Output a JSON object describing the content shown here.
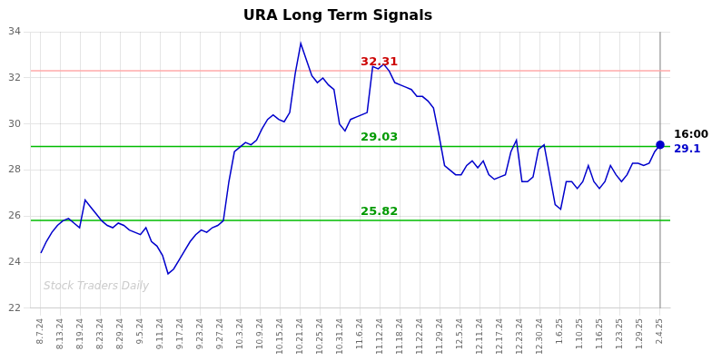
{
  "chart_data": {
    "type": "line",
    "title": "URA Long Term Signals",
    "x": [
      0,
      0.2768,
      0.5536,
      0.8304,
      1.1071,
      1.3839,
      1.6607,
      1.9375,
      2.2143,
      2.4911,
      2.7679,
      3.0446,
      3.3214,
      3.5982,
      3.875,
      4.1518,
      4.4286,
      4.7054,
      4.9821,
      5.2589,
      5.5357,
      5.8125,
      6.0893,
      6.3661,
      6.6429,
      6.9196,
      7.1964,
      7.4732,
      7.75,
      8.0268,
      8.3036,
      8.5804,
      8.8571,
      9.1339,
      9.4107,
      9.6875,
      9.9643,
      10.2411,
      10.5179,
      10.7946,
      11.0714,
      11.3482,
      11.625,
      11.9018,
      12.1786,
      12.4554,
      12.7321,
      13.0089,
      13.2857,
      13.5625,
      13.8393,
      14.1161,
      14.3929,
      14.6696,
      14.9464,
      15.2232,
      15.5,
      15.7768,
      16.0536,
      16.3304,
      16.6071,
      16.8839,
      17.1607,
      17.4375,
      17.7143,
      17.9911,
      18.2679,
      18.5446,
      18.8214,
      19.0982,
      19.375,
      19.6518,
      19.9286,
      20.2054,
      20.4821,
      20.7589,
      21.0357,
      21.3125,
      21.5893,
      21.8661,
      22.1429,
      22.4196,
      22.6964,
      22.9732,
      23.25,
      23.5268,
      23.8036,
      24.0804,
      24.3571,
      24.6339,
      24.9107,
      25.1875,
      25.4643,
      25.7411,
      26.0179,
      26.2946,
      26.5714,
      26.8482,
      27.125,
      27.4018,
      27.6786,
      27.9554,
      28.2321,
      28.5089,
      28.7857,
      29.0625,
      29.3393,
      29.6161,
      29.8929,
      30.1696,
      30.4464,
      30.7232,
      31
    ],
    "values": [
      24.4,
      24.9,
      25.3,
      25.6,
      25.8,
      25.9,
      25.7,
      25.5,
      26.7,
      26.4,
      26.1,
      25.8,
      25.6,
      25.5,
      25.7,
      25.6,
      25.4,
      25.3,
      25.2,
      25.5,
      24.9,
      24.7,
      24.3,
      23.5,
      23.7,
      24.1,
      24.5,
      24.9,
      25.2,
      25.4,
      25.3,
      25.5,
      25.6,
      25.8,
      27.5,
      28.8,
      29.0,
      29.2,
      29.1,
      29.3,
      29.8,
      30.2,
      30.4,
      30.2,
      30.1,
      30.5,
      32.2,
      33.5,
      32.8,
      32.1,
      31.8,
      32.0,
      31.7,
      31.5,
      30.0,
      29.7,
      30.2,
      30.3,
      30.4,
      30.5,
      32.5,
      32.4,
      32.6,
      32.3,
      31.8,
      31.7,
      31.6,
      31.5,
      31.2,
      31.2,
      31.0,
      30.7,
      29.5,
      28.2,
      28.0,
      27.8,
      27.8,
      28.2,
      28.4,
      28.1,
      28.4,
      27.8,
      27.6,
      27.7,
      27.8,
      28.8,
      29.3,
      27.5,
      27.5,
      27.7,
      28.9,
      29.1,
      27.8,
      26.5,
      26.3,
      27.5,
      27.5,
      27.2,
      27.5,
      28.2,
      27.5,
      27.2,
      27.5,
      28.2,
      27.8,
      27.5,
      27.8,
      28.3,
      28.3,
      28.2,
      28.3,
      28.8,
      29.1
    ],
    "color": "#0000cc",
    "xlim": [
      -0.5,
      31.5
    ],
    "xticks": [
      {
        "value": 0,
        "label": "8.7.24"
      },
      {
        "value": 1,
        "label": "8.13.24"
      },
      {
        "value": 2,
        "label": "8.19.24"
      },
      {
        "value": 3,
        "label": "8.23.24"
      },
      {
        "value": 4,
        "label": "8.29.24"
      },
      {
        "value": 5,
        "label": "9.5.24"
      },
      {
        "value": 6,
        "label": "9.11.24"
      },
      {
        "value": 7,
        "label": "9.17.24"
      },
      {
        "value": 8,
        "label": "9.23.24"
      },
      {
        "value": 9,
        "label": "9.27.24"
      },
      {
        "value": 10,
        "label": "10.3.24"
      },
      {
        "value": 11,
        "label": "10.9.24"
      },
      {
        "value": 12,
        "label": "10.15.24"
      },
      {
        "value": 13,
        "label": "10.21.24"
      },
      {
        "value": 14,
        "label": "10.25.24"
      },
      {
        "value": 15,
        "label": "10.31.24"
      },
      {
        "value": 16,
        "label": "11.6.24"
      },
      {
        "value": 17,
        "label": "11.12.24"
      },
      {
        "value": 18,
        "label": "11.18.24"
      },
      {
        "value": 19,
        "label": "11.22.24"
      },
      {
        "value": 20,
        "label": "11.29.24"
      },
      {
        "value": 21,
        "label": "12.5.24"
      },
      {
        "value": 22,
        "label": "12.11.24"
      },
      {
        "value": 23,
        "label": "12.17.24"
      },
      {
        "value": 24,
        "label": "12.23.24"
      },
      {
        "value": 25,
        "label": "12.30.24"
      },
      {
        "value": 26,
        "label": "1.6.25"
      },
      {
        "value": 27,
        "label": "1.10.25"
      },
      {
        "value": 28,
        "label": "1.16.25"
      },
      {
        "value": 29,
        "label": "1.23.25"
      },
      {
        "value": 30,
        "label": "1.29.25"
      },
      {
        "value": 31,
        "label": "2.4.25"
      }
    ],
    "ylim": [
      22,
      34
    ],
    "yticks": [
      22,
      24,
      26,
      28,
      30,
      32,
      34
    ],
    "grid": true,
    "hlines": [
      {
        "value": 32.31,
        "color": "#ffaaaa",
        "label_color": "#cc0000"
      },
      {
        "value": 29.03,
        "color": "#00bb00",
        "label_color": "#009900"
      },
      {
        "value": 25.82,
        "color": "#00bb00",
        "label_color": "#009900"
      }
    ],
    "annotations": [
      {
        "text": "16:00",
        "color": "#000000"
      },
      {
        "text": "29.1",
        "color": "#0000cc"
      }
    ],
    "watermark": "Stock Traders Daily"
  }
}
